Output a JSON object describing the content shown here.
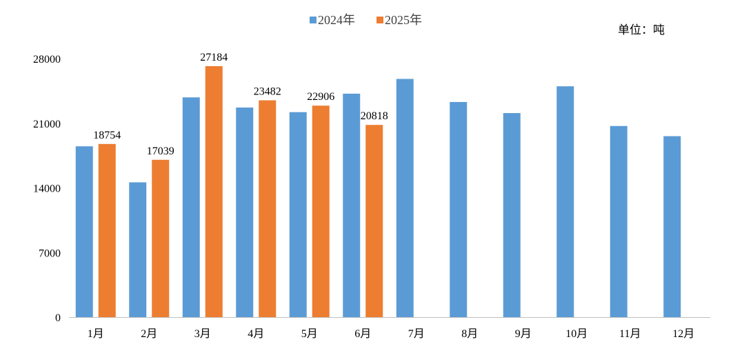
{
  "chart_data": {
    "type": "bar",
    "unit_label": "单位：吨",
    "categories": [
      "1月",
      "2月",
      "3月",
      "4月",
      "5月",
      "6月",
      "7月",
      "8月",
      "9月",
      "10月",
      "11月",
      "12月"
    ],
    "series": [
      {
        "name": "2024年",
        "color": "#5B9BD5",
        "values": [
          18500,
          14600,
          23800,
          22700,
          22200,
          24200,
          25800,
          23300,
          22100,
          25000,
          20700,
          19600
        ]
      },
      {
        "name": "2025年",
        "color": "#ED7D31",
        "values": [
          18754,
          17039,
          27184,
          23482,
          22906,
          20818,
          null,
          null,
          null,
          null,
          null,
          null
        ],
        "data_labels": [
          "18754",
          "17039",
          "27184",
          "23482",
          "22906",
          "20818"
        ]
      }
    ],
    "y_ticks": [
      "0",
      "7000",
      "14000",
      "21000",
      "28000"
    ],
    "ylim": [
      0,
      28000
    ],
    "grid": false,
    "legend_position": "top-center"
  }
}
